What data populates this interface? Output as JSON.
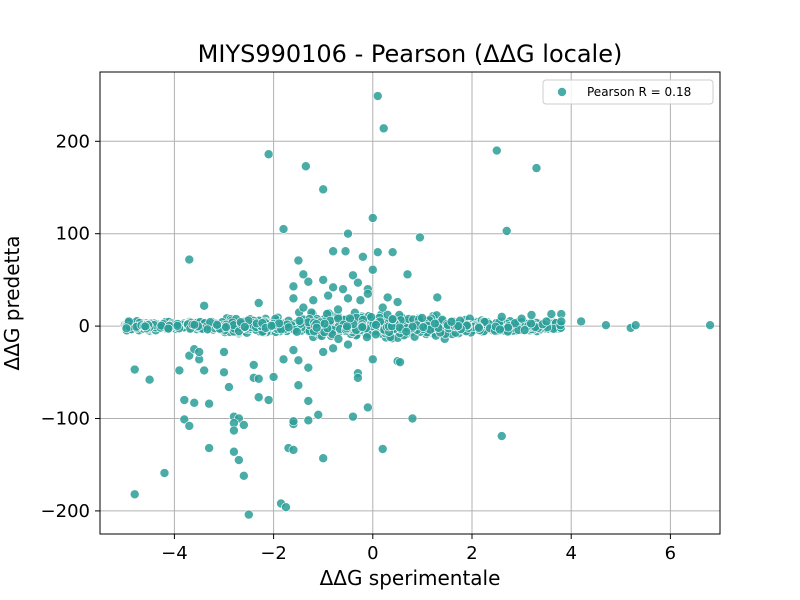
{
  "chart_data": {
    "type": "scatter",
    "title": "MIYS990106 - Pearson (ΔΔG locale)",
    "xlabel": "ΔΔG sperimentale",
    "ylabel": "ΔΔG predetta",
    "xlim": [
      -5.5,
      7.0
    ],
    "ylim": [
      -225,
      275
    ],
    "xticks": [
      -4,
      -2,
      0,
      2,
      4,
      6
    ],
    "yticks": [
      -200,
      -100,
      0,
      100,
      200
    ],
    "grid": true,
    "legend_position": "top-right",
    "colors": {
      "marker_fill": "#2a9d98",
      "marker_edge": "#ffffff"
    },
    "series": [
      {
        "name": "Pearson R = 0.18",
        "points": [
          [
            0.1,
            249
          ],
          [
            0.22,
            214
          ],
          [
            -2.1,
            186
          ],
          [
            -1.35,
            173
          ],
          [
            2.5,
            190
          ],
          [
            3.3,
            171
          ],
          [
            -1.0,
            148
          ],
          [
            0.0,
            117
          ],
          [
            -1.8,
            105
          ],
          [
            2.7,
            103
          ],
          [
            -0.5,
            100
          ],
          [
            0.95,
            96
          ],
          [
            -3.7,
            72
          ],
          [
            -0.8,
            81
          ],
          [
            -0.55,
            81
          ],
          [
            0.1,
            80
          ],
          [
            0.4,
            80
          ],
          [
            -1.5,
            71
          ],
          [
            -0.2,
            75
          ],
          [
            0.7,
            56
          ],
          [
            0.0,
            61
          ],
          [
            -1.4,
            56
          ],
          [
            -0.4,
            55
          ],
          [
            -1.0,
            50
          ],
          [
            -1.3,
            48
          ],
          [
            -0.3,
            47
          ],
          [
            -1.6,
            43
          ],
          [
            -0.8,
            42
          ],
          [
            -0.6,
            40
          ],
          [
            -0.1,
            40
          ],
          [
            0.3,
            31
          ],
          [
            -1.6,
            30
          ],
          [
            -1.2,
            28
          ],
          [
            -0.5,
            30
          ],
          [
            -0.25,
            28
          ],
          [
            1.3,
            31
          ],
          [
            -2.3,
            25
          ],
          [
            -3.4,
            22
          ],
          [
            -1.4,
            20
          ],
          [
            -0.7,
            18
          ],
          [
            0.2,
            20
          ],
          [
            0.5,
            26
          ],
          [
            -0.9,
            33
          ],
          [
            -0.1,
            35
          ],
          [
            -4.8,
            -47
          ],
          [
            -4.5,
            -58
          ],
          [
            -3.9,
            -48
          ],
          [
            -3.7,
            -32
          ],
          [
            -3.6,
            -25
          ],
          [
            -3.5,
            -36
          ],
          [
            -3.5,
            -28
          ],
          [
            -3.4,
            -48
          ],
          [
            -3.0,
            -28
          ],
          [
            -3.0,
            -50
          ],
          [
            -2.9,
            -66
          ],
          [
            -2.4,
            -42
          ],
          [
            -2.4,
            -56
          ],
          [
            -2.3,
            -57
          ],
          [
            -2.0,
            -55
          ],
          [
            -1.8,
            -36
          ],
          [
            -1.6,
            -26
          ],
          [
            -1.5,
            -37
          ],
          [
            -1.3,
            -45
          ],
          [
            -1.0,
            -28
          ],
          [
            -0.8,
            -24
          ],
          [
            -0.5,
            -20
          ],
          [
            -0.3,
            -51
          ],
          [
            -0.3,
            -56
          ],
          [
            0.0,
            -36
          ],
          [
            0.5,
            -38
          ],
          [
            0.55,
            -39
          ],
          [
            -1.5,
            -64
          ],
          [
            -2.1,
            -80
          ],
          [
            -2.3,
            -77
          ],
          [
            -3.8,
            -80
          ],
          [
            -3.6,
            -83
          ],
          [
            -3.3,
            -84
          ],
          [
            -1.3,
            -81
          ],
          [
            -1.6,
            -106
          ],
          [
            -1.6,
            -103
          ],
          [
            -1.3,
            -102
          ],
          [
            -1.1,
            -96
          ],
          [
            -0.4,
            -98
          ],
          [
            -0.1,
            -88
          ],
          [
            0.8,
            -100
          ],
          [
            -3.8,
            -101
          ],
          [
            -3.7,
            -108
          ],
          [
            -2.8,
            -98
          ],
          [
            -2.7,
            -100
          ],
          [
            -2.8,
            -105
          ],
          [
            -2.8,
            -113
          ],
          [
            -2.6,
            -107
          ],
          [
            -3.3,
            -132
          ],
          [
            -2.8,
            -136
          ],
          [
            -2.7,
            -145
          ],
          [
            -2.6,
            -162
          ],
          [
            -1.7,
            -132
          ],
          [
            -1.6,
            -134
          ],
          [
            -1.0,
            -143
          ],
          [
            0.2,
            -133
          ],
          [
            2.6,
            -119
          ],
          [
            -4.2,
            -159
          ],
          [
            -4.8,
            -182
          ],
          [
            -1.85,
            -192
          ],
          [
            -1.75,
            -196
          ],
          [
            -2.5,
            -204
          ],
          [
            4.2,
            5
          ],
          [
            4.7,
            1
          ],
          [
            5.2,
            -2
          ],
          [
            5.3,
            1
          ],
          [
            6.8,
            1
          ],
          [
            3.8,
            13
          ],
          [
            3.6,
            13
          ],
          [
            3.8,
            5
          ],
          [
            3.5,
            5
          ],
          [
            3.2,
            12
          ],
          [
            3.0,
            8
          ],
          [
            2.6,
            10
          ]
        ]
      }
    ]
  }
}
